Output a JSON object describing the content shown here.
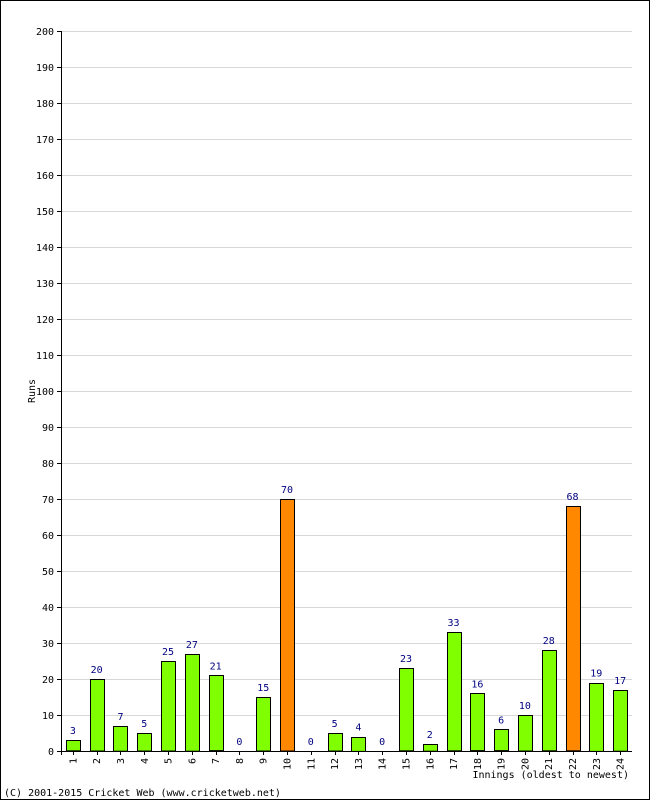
{
  "chart_data": {
    "type": "bar",
    "ylabel": "Runs",
    "xlabel": "Innings (oldest to newest)",
    "ylim": [
      0,
      200
    ],
    "y_ticks": [
      0,
      10,
      20,
      30,
      40,
      50,
      60,
      70,
      80,
      90,
      100,
      110,
      120,
      130,
      140,
      150,
      160,
      170,
      180,
      190,
      200
    ],
    "categories": [
      "1",
      "2",
      "3",
      "4",
      "5",
      "6",
      "7",
      "8",
      "9",
      "10",
      "11",
      "12",
      "13",
      "14",
      "15",
      "16",
      "17",
      "18",
      "19",
      "20",
      "21",
      "22",
      "23",
      "24"
    ],
    "values": [
      3,
      20,
      7,
      5,
      25,
      27,
      21,
      0,
      15,
      70,
      0,
      5,
      4,
      0,
      23,
      2,
      33,
      16,
      6,
      10,
      28,
      68,
      19,
      17
    ],
    "highlight": [
      false,
      false,
      false,
      false,
      false,
      false,
      false,
      false,
      false,
      true,
      false,
      false,
      false,
      false,
      false,
      false,
      false,
      false,
      false,
      false,
      false,
      true,
      false,
      false
    ],
    "colors": {
      "normal": "#80ff00",
      "highlight": "#ff8800",
      "data_label": "#000080",
      "grid": "#d8d8d8"
    },
    "grid": true
  },
  "footer": {
    "copyright": "(C) 2001-2015 Cricket Web (www.cricketweb.net)"
  }
}
